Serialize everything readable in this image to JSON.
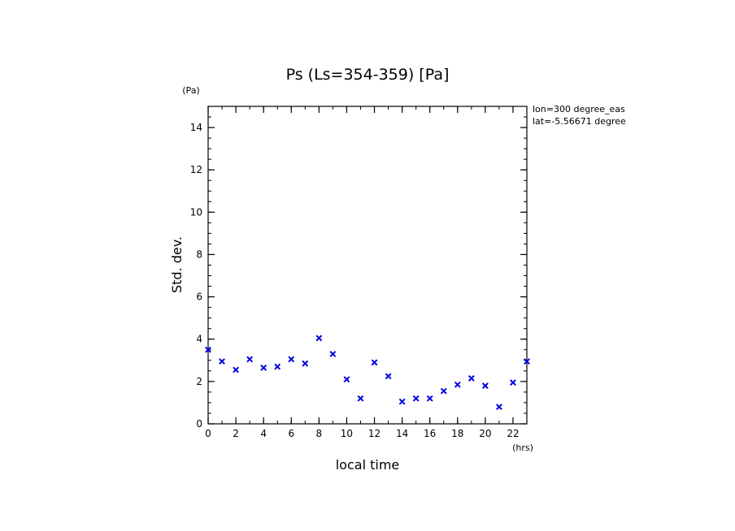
{
  "chart_data": {
    "type": "scatter",
    "title": "Ps (Ls=354-359) [Pa]",
    "xlabel": "local time",
    "ylabel": "Std. dev.",
    "x_unit": "(hrs)",
    "y_unit": "(Pa)",
    "xlim": [
      0,
      23
    ],
    "ylim": [
      0,
      15
    ],
    "xticks": [
      0,
      2,
      4,
      6,
      8,
      10,
      12,
      14,
      16,
      18,
      20,
      22
    ],
    "yticks": [
      0,
      2,
      4,
      6,
      8,
      10,
      12,
      14
    ],
    "x_minor_step": 1,
    "y_minor_step": 0.5,
    "marker": "x",
    "marker_color": "#0000dd",
    "grid": false,
    "annotations": [
      "lon=300 degree_eas",
      "lat=-5.56671 degree"
    ],
    "series": [
      {
        "name": "Std. dev.",
        "x": [
          0,
          1,
          2,
          3,
          4,
          5,
          6,
          7,
          8,
          9,
          10,
          11,
          12,
          13,
          14,
          15,
          16,
          17,
          18,
          19,
          20,
          21,
          22,
          23
        ],
        "y": [
          3.5,
          2.95,
          2.55,
          3.05,
          2.65,
          2.7,
          3.05,
          2.85,
          4.05,
          3.3,
          2.1,
          1.2,
          2.9,
          2.25,
          1.05,
          1.2,
          1.2,
          1.55,
          1.85,
          2.15,
          1.8,
          0.8,
          1.95,
          2.95
        ]
      }
    ]
  }
}
